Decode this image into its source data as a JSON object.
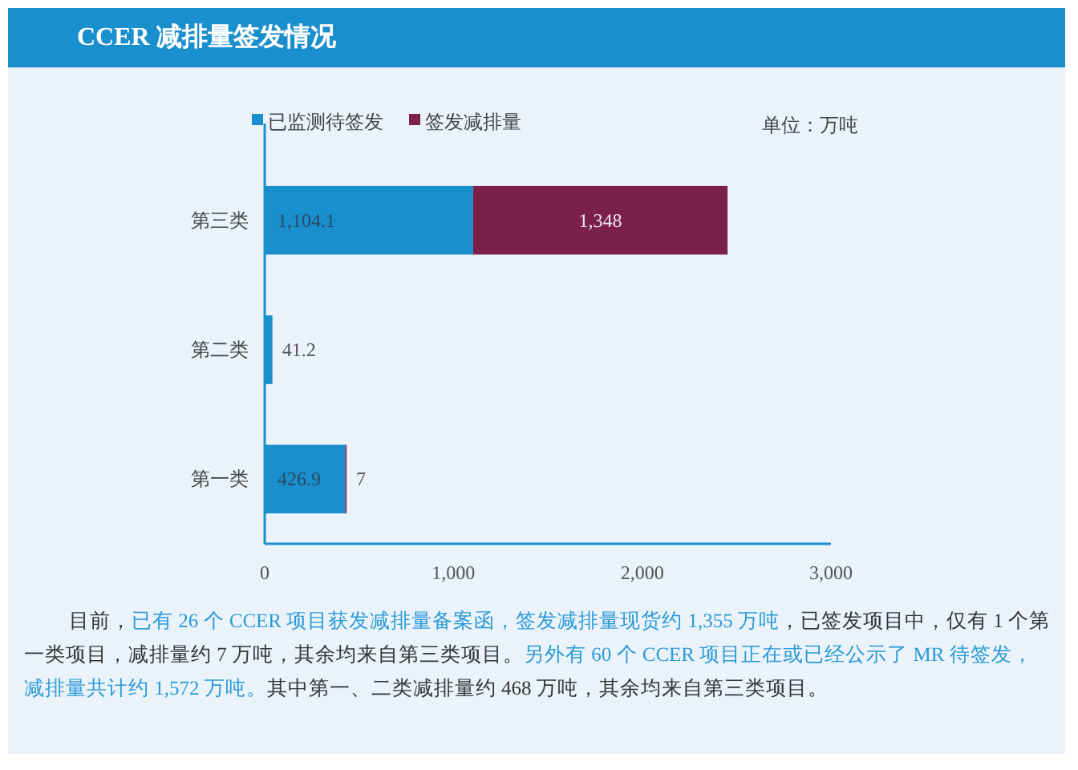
{
  "chart_data": {
    "type": "bar",
    "orientation": "horizontal",
    "stacked": true,
    "title": "CCER 减排量签发情况",
    "categories": [
      "第三类",
      "第二类",
      "第一类"
    ],
    "series": [
      {
        "name": "已监测待签发",
        "color": "#1a8fce",
        "values": [
          1104.1,
          41.2,
          426.9
        ],
        "value_labels": [
          "1,104.1",
          "41.2",
          "426.9"
        ]
      },
      {
        "name": "签发减排量",
        "color": "#7b1f4b",
        "values": [
          1348,
          null,
          7
        ],
        "value_labels": [
          "1,348",
          null,
          "7"
        ]
      }
    ],
    "xlim": [
      0,
      3000
    ],
    "xticks": [
      0,
      {
        "value": 1000,
        "label": "1,000"
      },
      {
        "value": 2000,
        "label": "2,000"
      },
      {
        "value": 3000,
        "label": "3,000"
      }
    ],
    "grid": false,
    "legend": "top",
    "annotations": [
      "单位：万吨",
      "目前，",
      "已有 26 个 CCER 项目获发减排量备案函，签发减排量现货约 1,355 万吨",
      "，已签发项目中，仅有 1 个第一类项目，减排量约 7 万吨，其余均来自第三类项目。",
      "另外有 60 个 CCER 项目正在或已经公示了 MR 待签发，减排量共计约 1,572 万吨。",
      "其中第一、二类减排量约 468 万吨，其余均来自第三类项目。"
    ]
  }
}
